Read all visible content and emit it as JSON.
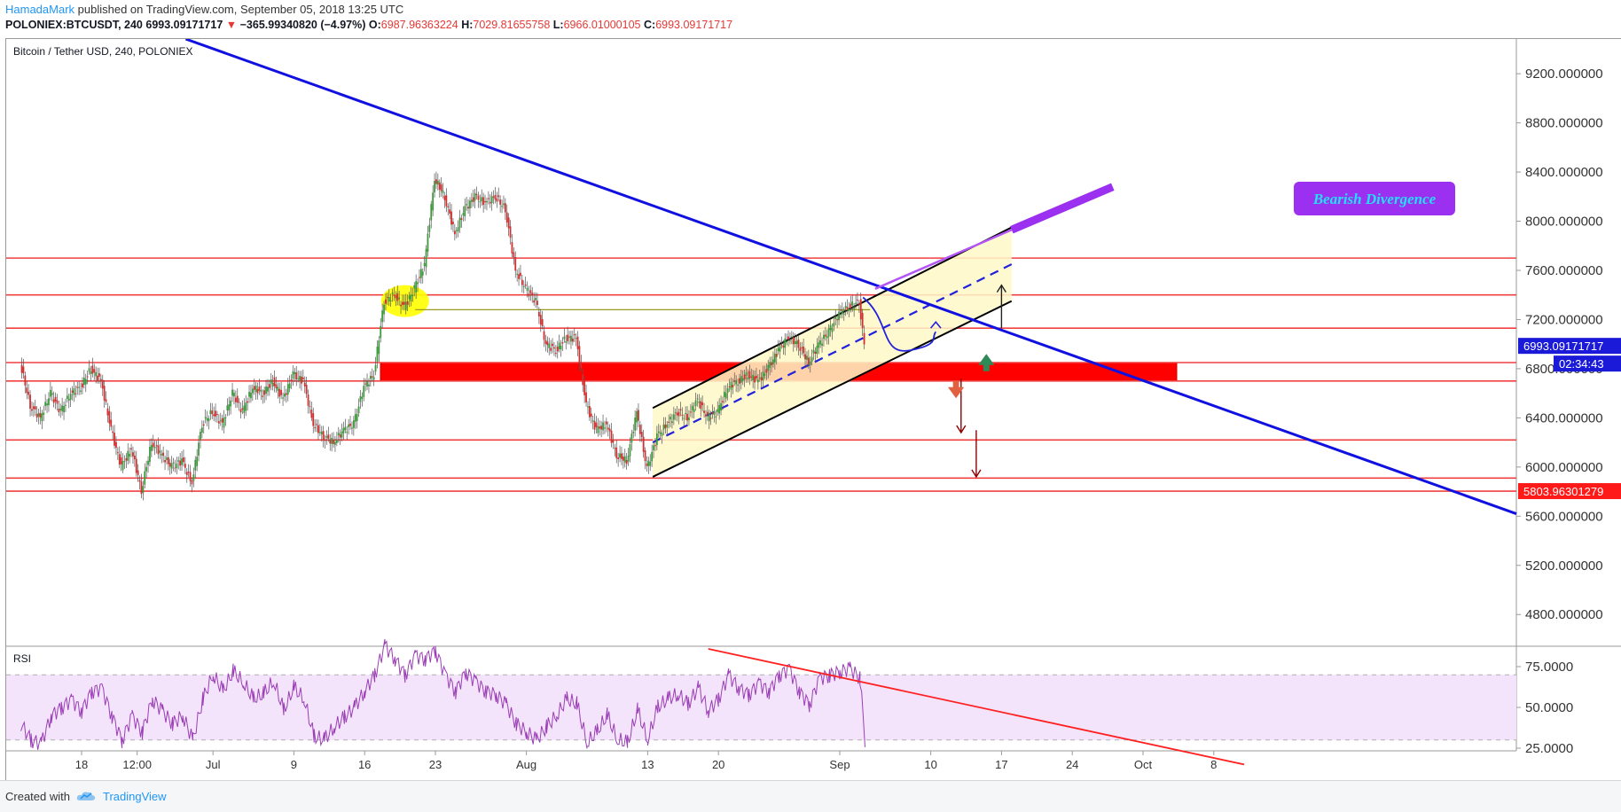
{
  "header": {
    "author": "HamadaMark",
    "published": "published on TradingView.com, September 05, 2018 13:25 UTC"
  },
  "ohlc": {
    "symbol": "POLONIEX:BTCUSDT, 240",
    "last": "6993.09171717",
    "arrow": "▼",
    "change": "−365.99340820 (−4.97%)",
    "o_label": "O:",
    "o": "6987.96363224",
    "h_label": "H:",
    "h": "7029.81655758",
    "l_label": "L:",
    "l": "6966.01000105",
    "c_label": "C:",
    "c": "6993.09171717"
  },
  "chart_data": {
    "type": "candlestick",
    "title": "Bitcoin / Tether USD, 240, POLONIEX",
    "y_ticks": [
      {
        "label": "9200.000000",
        "value": 9200
      },
      {
        "label": "8800.000000",
        "value": 8800
      },
      {
        "label": "8400.000000",
        "value": 8400
      },
      {
        "label": "8000.000000",
        "value": 8000
      },
      {
        "label": "7600.000000",
        "value": 7600
      },
      {
        "label": "7200.000000",
        "value": 7200
      },
      {
        "label": "6800.000000",
        "value": 6800
      },
      {
        "label": "6400.000000",
        "value": 6400
      },
      {
        "label": "6000.000000",
        "value": 6000
      },
      {
        "label": "5600.000000",
        "value": 5600
      },
      {
        "label": "5200.000000",
        "value": 5200
      },
      {
        "label": "4800.000000",
        "value": 4800
      }
    ],
    "x_ticks": [
      {
        "label": "18",
        "day": 3
      },
      {
        "label": "12:00",
        "day": 8.5
      },
      {
        "label": "Jul",
        "day": 16
      },
      {
        "label": "9",
        "day": 24
      },
      {
        "label": "16",
        "day": 31
      },
      {
        "label": "23",
        "day": 38
      },
      {
        "label": "Aug",
        "day": 47
      },
      {
        "label": "13",
        "day": 59
      },
      {
        "label": "20",
        "day": 66
      },
      {
        "label": "Sep",
        "day": 78
      },
      {
        "label": "10",
        "day": 87
      },
      {
        "label": "17",
        "day": 94
      },
      {
        "label": "24",
        "day": 101
      },
      {
        "label": "Oct",
        "day": 108
      },
      {
        "label": "8",
        "day": 115
      }
    ],
    "price_path": [
      [
        -3,
        6850
      ],
      [
        -2,
        6500
      ],
      [
        -1,
        6400
      ],
      [
        0,
        6600
      ],
      [
        1,
        6450
      ],
      [
        2,
        6600
      ],
      [
        3,
        6650
      ],
      [
        4,
        6800
      ],
      [
        5,
        6700
      ],
      [
        6,
        6300
      ],
      [
        7,
        6000
      ],
      [
        8,
        6150
      ],
      [
        9,
        5810
      ],
      [
        10,
        6200
      ],
      [
        11,
        6100
      ],
      [
        12,
        6000
      ],
      [
        13,
        6050
      ],
      [
        14,
        5870
      ],
      [
        15,
        6350
      ],
      [
        16,
        6450
      ],
      [
        17,
        6350
      ],
      [
        18,
        6600
      ],
      [
        19,
        6450
      ],
      [
        20,
        6650
      ],
      [
        21,
        6600
      ],
      [
        22,
        6700
      ],
      [
        23,
        6550
      ],
      [
        24,
        6750
      ],
      [
        25,
        6700
      ],
      [
        26,
        6350
      ],
      [
        27,
        6250
      ],
      [
        28,
        6200
      ],
      [
        29,
        6300
      ],
      [
        30,
        6350
      ],
      [
        31,
        6650
      ],
      [
        32,
        6750
      ],
      [
        33,
        7350
      ],
      [
        34,
        7400
      ],
      [
        35,
        7300
      ],
      [
        36,
        7450
      ],
      [
        37,
        7650
      ],
      [
        38,
        8350
      ],
      [
        39,
        8200
      ],
      [
        40,
        7900
      ],
      [
        41,
        8100
      ],
      [
        42,
        8200
      ],
      [
        43,
        8150
      ],
      [
        44,
        8200
      ],
      [
        45,
        8100
      ],
      [
        46,
        7600
      ],
      [
        47,
        7450
      ],
      [
        48,
        7350
      ],
      [
        49,
        7000
      ],
      [
        50,
        6950
      ],
      [
        51,
        7050
      ],
      [
        52,
        7050
      ],
      [
        53,
        6500
      ],
      [
        54,
        6300
      ],
      [
        55,
        6350
      ],
      [
        56,
        6100
      ],
      [
        57,
        6050
      ],
      [
        58,
        6450
      ],
      [
        59,
        5980
      ],
      [
        60,
        6250
      ],
      [
        61,
        6350
      ],
      [
        62,
        6450
      ],
      [
        63,
        6400
      ],
      [
        64,
        6550
      ],
      [
        65,
        6400
      ],
      [
        66,
        6450
      ],
      [
        67,
        6650
      ],
      [
        68,
        6700
      ],
      [
        69,
        6750
      ],
      [
        70,
        6700
      ],
      [
        71,
        6800
      ],
      [
        72,
        6950
      ],
      [
        73,
        7050
      ],
      [
        74,
        7000
      ],
      [
        75,
        6850
      ],
      [
        76,
        7000
      ],
      [
        77,
        7100
      ],
      [
        78,
        7250
      ],
      [
        79,
        7300
      ],
      [
        80,
        7350
      ],
      [
        80.5,
        6993
      ]
    ],
    "support_resistance": [
      7700,
      7400,
      7130,
      6850,
      6700,
      6220,
      5910,
      5803.96
    ],
    "zone": {
      "top": 6850,
      "bottom": 6700
    },
    "last_price_label": "6993.09171717",
    "countdown_label": "02:34:43",
    "support_label": "5803.96301279",
    "annotation": "Bearish Divergence",
    "rsi": {
      "label": "RSI",
      "y_ticks": [
        {
          "label": "75.0000",
          "value": 75
        },
        {
          "label": "50.0000",
          "value": 50
        },
        {
          "label": "25.0000",
          "value": 25
        }
      ],
      "band": [
        30,
        70
      ],
      "path": [
        [
          -3,
          40
        ],
        [
          -2,
          30
        ],
        [
          -1,
          28
        ],
        [
          0,
          45
        ],
        [
          1,
          50
        ],
        [
          2,
          55
        ],
        [
          3,
          48
        ],
        [
          4,
          60
        ],
        [
          5,
          62
        ],
        [
          6,
          45
        ],
        [
          7,
          30
        ],
        [
          8,
          45
        ],
        [
          9,
          35
        ],
        [
          10,
          55
        ],
        [
          11,
          48
        ],
        [
          12,
          40
        ],
        [
          13,
          45
        ],
        [
          14,
          30
        ],
        [
          15,
          55
        ],
        [
          16,
          70
        ],
        [
          17,
          60
        ],
        [
          18,
          72
        ],
        [
          19,
          65
        ],
        [
          20,
          55
        ],
        [
          21,
          58
        ],
        [
          22,
          66
        ],
        [
          23,
          48
        ],
        [
          24,
          62
        ],
        [
          25,
          55
        ],
        [
          26,
          32
        ],
        [
          27,
          30
        ],
        [
          28,
          38
        ],
        [
          29,
          44
        ],
        [
          30,
          50
        ],
        [
          31,
          60
        ],
        [
          32,
          70
        ],
        [
          33,
          88
        ],
        [
          34,
          80
        ],
        [
          35,
          70
        ],
        [
          36,
          82
        ],
        [
          37,
          80
        ],
        [
          38,
          85
        ],
        [
          39,
          70
        ],
        [
          40,
          60
        ],
        [
          41,
          72
        ],
        [
          42,
          66
        ],
        [
          43,
          60
        ],
        [
          44,
          58
        ],
        [
          45,
          52
        ],
        [
          46,
          40
        ],
        [
          47,
          35
        ],
        [
          48,
          30
        ],
        [
          49,
          38
        ],
        [
          50,
          45
        ],
        [
          51,
          55
        ],
        [
          52,
          52
        ],
        [
          53,
          28
        ],
        [
          54,
          35
        ],
        [
          55,
          45
        ],
        [
          56,
          30
        ],
        [
          57,
          28
        ],
        [
          58,
          48
        ],
        [
          59,
          30
        ],
        [
          60,
          50
        ],
        [
          61,
          55
        ],
        [
          62,
          58
        ],
        [
          63,
          52
        ],
        [
          64,
          62
        ],
        [
          65,
          48
        ],
        [
          66,
          55
        ],
        [
          67,
          70
        ],
        [
          68,
          62
        ],
        [
          69,
          58
        ],
        [
          70,
          65
        ],
        [
          71,
          60
        ],
        [
          72,
          70
        ],
        [
          73,
          74
        ],
        [
          74,
          60
        ],
        [
          75,
          52
        ],
        [
          76,
          68
        ],
        [
          77,
          70
        ],
        [
          78,
          72
        ],
        [
          79,
          74
        ],
        [
          80,
          68
        ],
        [
          80.5,
          30
        ]
      ]
    }
  },
  "footer": {
    "created": "Created with",
    "brand": "TradingView"
  }
}
